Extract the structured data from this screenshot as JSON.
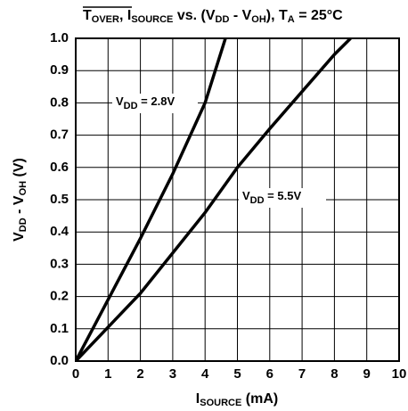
{
  "chart_data": {
    "type": "line",
    "title": [
      "T",
      "OVER",
      ", I",
      "SOURCE",
      " vs. (V",
      "DD",
      " - V",
      "OH",
      "), T",
      "A",
      " = 25°C"
    ],
    "xlabel": [
      "I",
      "SOURCE",
      " (mA)"
    ],
    "ylabel": [
      "V",
      "DD",
      " - V",
      "OH",
      " (V)"
    ],
    "xlim": [
      0,
      10
    ],
    "ylim": [
      0,
      1
    ],
    "xticks": [
      0,
      1,
      2,
      3,
      4,
      5,
      6,
      7,
      8,
      9,
      10
    ],
    "yticks": [
      {
        "value": 0,
        "label": "0.0"
      },
      0.1,
      0.2,
      0.3,
      0.4,
      0.5,
      0.6,
      0.7,
      0.8,
      0.9,
      {
        "value": 1,
        "label": "1.0"
      }
    ],
    "grid": true,
    "series": [
      {
        "name": [
          "V",
          "DD",
          " = 2.8V"
        ],
        "color": "#000000",
        "x": [
          0,
          1,
          2,
          3,
          4,
          4.63
        ],
        "values": [
          0,
          0.19,
          0.38,
          0.58,
          0.8,
          1.0
        ]
      },
      {
        "name": [
          "V",
          "DD",
          " = 5.5V"
        ],
        "color": "#000000",
        "x": [
          0,
          2,
          4,
          5,
          6,
          8,
          8.5
        ],
        "values": [
          0,
          0.21,
          0.46,
          0.6,
          0.72,
          0.95,
          1.0
        ]
      }
    ]
  }
}
